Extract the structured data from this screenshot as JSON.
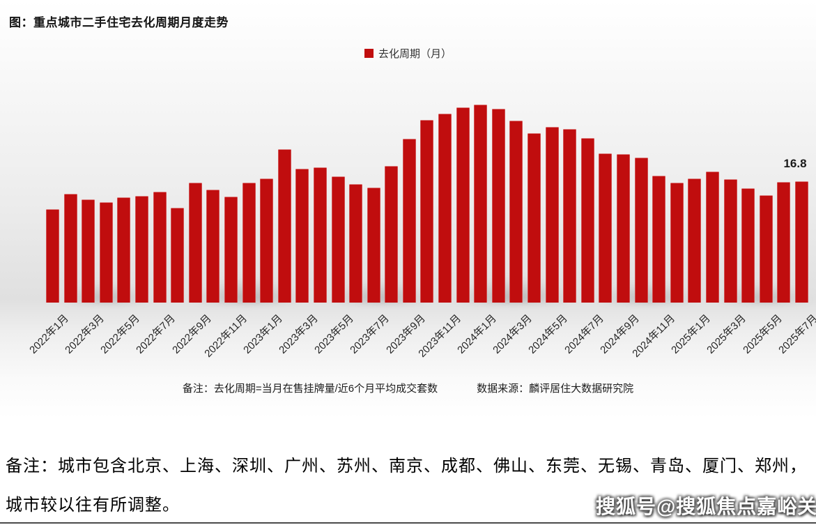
{
  "header": {
    "title": "图：重点城市二手住宅去化周期月度走势"
  },
  "legend": {
    "label": "去化周期（月）",
    "swatch_color": "#c00d0e"
  },
  "chart_data": {
    "type": "bar",
    "title": "重点城市二手住宅去化周期月度走势",
    "series_name": "去化周期（月）",
    "unit": "月",
    "bar_color": "#c00d0e",
    "grid": false,
    "legend_position": "top",
    "ylim": [
      0,
      30
    ],
    "categories": [
      "2022年1月",
      "2022年2月",
      "2022年3月",
      "2022年4月",
      "2022年5月",
      "2022年6月",
      "2022年7月",
      "2022年8月",
      "2022年9月",
      "2022年10月",
      "2022年11月",
      "2022年12月",
      "2023年1月",
      "2023年2月",
      "2023年3月",
      "2023年4月",
      "2023年5月",
      "2023年6月",
      "2023年7月",
      "2023年8月",
      "2023年9月",
      "2023年10月",
      "2023年11月",
      "2023年12月",
      "2024年1月",
      "2024年2月",
      "2024年3月",
      "2024年4月",
      "2024年5月",
      "2024年6月",
      "2024年7月",
      "2024年8月",
      "2024年9月",
      "2024年10月",
      "2024年11月",
      "2024年12月",
      "2025年1月",
      "2025年2月",
      "2025年3月",
      "2025年4月",
      "2025年5月",
      "2025年6月",
      "2025年7月"
    ],
    "values": [
      12.9,
      15.1,
      14.3,
      13.9,
      14.6,
      14.8,
      15.4,
      13.1,
      16.6,
      15.6,
      14.7,
      16.6,
      17.2,
      21.2,
      18.5,
      18.7,
      17.5,
      16.4,
      15.9,
      18.9,
      22.7,
      25.3,
      26.2,
      27.0,
      27.4,
      26.8,
      25.2,
      23.5,
      24.3,
      24.0,
      22.8,
      20.7,
      20.6,
      20.1,
      17.6,
      16.6,
      17.2,
      18.2,
      17.1,
      15.8,
      14.9,
      16.7,
      16.8
    ],
    "x_tick_labels": [
      "2022年1月",
      "2022年3月",
      "2022年5月",
      "2022年7月",
      "2022年9月",
      "2022年11月",
      "2023年1月",
      "2023年3月",
      "2023年5月",
      "2023年7月",
      "2023年9月",
      "2023年11月",
      "2024年1月",
      "2024年3月",
      "2024年5月",
      "2024年7月",
      "2024年9月",
      "2024年11月",
      "2025年1月",
      "2025年3月",
      "2025年5月",
      "2025年7月"
    ],
    "shown_data_label": {
      "text": "16.8",
      "category": "2025年7月",
      "value": 16.8
    }
  },
  "notes": {
    "definition": "备注：去化周期=当月在售挂牌量/近6个月平均成交套数",
    "source": "数据来源：麟评居住大数据研究院"
  },
  "footer": {
    "note_line1": "备注：城市包含北京、上海、深圳、广州、苏州、南京、成都、佛山、东莞、无锡、青岛、厦门、郑州，",
    "note_line2": "城市较以往有所调整。",
    "watermark": "搜狐号@搜狐焦点嘉峪关站"
  }
}
